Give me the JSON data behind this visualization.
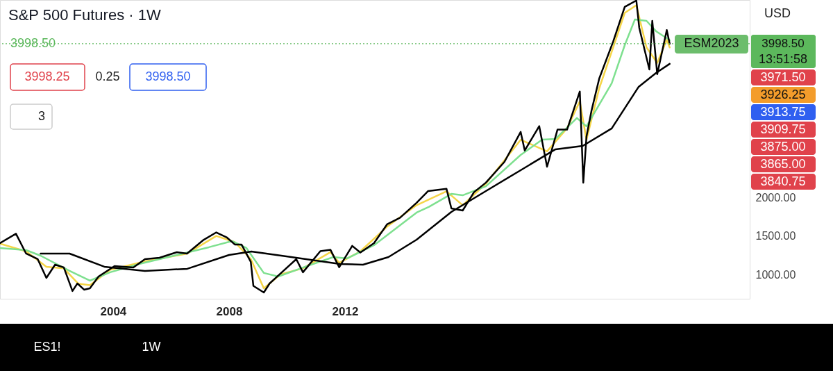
{
  "chart_data": {
    "type": "line",
    "title": "S&P 500 Futures · 1W",
    "xlim": [
      2000.1,
      2025.96
    ],
    "ylim": [
      684,
      4567
    ],
    "xticks": [
      2004,
      2008,
      2012
    ],
    "yticks": [
      {
        "value": 1000,
        "label": "1000.00"
      },
      {
        "value": 1500,
        "label": "1500.00"
      },
      {
        "value": 2000,
        "label": "2000.00"
      }
    ],
    "grid": false,
    "series": [
      {
        "color": "#f5d547",
        "x": [
          2000.1,
          2001.0,
          2001.7,
          2002.3,
          2002.8,
          2003.2,
          2003.9,
          2005.1,
          2006.55,
          2007.56,
          2008.2,
          2008.75,
          2009.2,
          2009.77,
          2010.55,
          2011.5,
          2011.8,
          2012.53,
          2013.45,
          2014.47,
          2015.5,
          2016.06,
          2016.86,
          2018.06,
          2018.97,
          2019.66,
          2020.1,
          2020.33,
          2020.77,
          2021.25,
          2021.65,
          2022.05,
          2022.4,
          2022.77,
          2023.1,
          2023.2
        ],
        "values": [
          1400,
          1300,
          1100,
          1080,
          880,
          860,
          1060,
          1170,
          1270,
          1500,
          1420,
          1200,
          820,
          1000,
          1080,
          1290,
          1150,
          1300,
          1620,
          1900,
          2080,
          1900,
          2180,
          2750,
          2600,
          2900,
          3250,
          2750,
          3420,
          3950,
          4400,
          4500,
          3950,
          3750,
          4050,
          3950
        ]
      },
      {
        "color": "#7ee08f",
        "x": [
          2000.1,
          2001.0,
          2001.5,
          2002.5,
          2003.2,
          2003.9,
          2004.9,
          2006.1,
          2007.3,
          2008.1,
          2008.6,
          2009.2,
          2009.7,
          2010.63,
          2011.6,
          2012.07,
          2013.0,
          2014.47,
          2014.9,
          2015.67,
          2016.06,
          2016.86,
          2018.06,
          2018.8,
          2019.26,
          2020.0,
          2020.33,
          2021.2,
          2021.65,
          2022.0,
          2022.4,
          2022.73,
          2023.1,
          2023.2
        ],
        "values": [
          1344,
          1316,
          1244,
          1046,
          919,
          1028,
          1136,
          1244,
          1353,
          1434,
          1344,
          1019,
          973,
          1100,
          1226,
          1208,
          1380,
          1804,
          1880,
          2047,
          2029,
          2146,
          2553,
          2752,
          2762,
          3033,
          2925,
          3484,
          3980,
          4314,
          4296,
          4161,
          4071,
          4044
        ]
      },
      {
        "color": "#000000",
        "x": [
          2000.1,
          2000.65,
          2001.0,
          2001.4,
          2001.7,
          2002.0,
          2002.3,
          2002.6,
          2002.77,
          2003.0,
          2003.2,
          2003.5,
          2004.05,
          2004.7,
          2005.1,
          2005.6,
          2006.2,
          2006.55,
          2007.1,
          2007.56,
          2007.93,
          2008.2,
          2008.43,
          2008.75,
          2008.84,
          2009.2,
          2009.4,
          2009.77,
          2010.32,
          2010.55,
          2011.15,
          2011.5,
          2011.8,
          2012.25,
          2012.53,
          2013.0,
          2013.45,
          2013.9,
          2014.47,
          2014.87,
          2015.5,
          2015.67,
          2016.06,
          2016.45,
          2016.86,
          2017.5,
          2018.06,
          2018.2,
          2018.7,
          2018.97,
          2019.33,
          2019.66,
          2020.1,
          2020.22,
          2020.33,
          2020.5,
          2020.77,
          2021.25,
          2021.65,
          2022.05,
          2022.15,
          2022.4,
          2022.5,
          2022.6,
          2022.77,
          2023.1,
          2023.2
        ],
        "values": [
          1407,
          1529,
          1271,
          1199,
          955,
          1127,
          1091,
          784,
          883,
          802,
          820,
          973,
          1109,
          1091,
          1199,
          1217,
          1289,
          1271,
          1443,
          1546,
          1479,
          1389,
          1389,
          1163,
          851,
          765,
          883,
          1010,
          1199,
          1028,
          1303,
          1320,
          1094,
          1371,
          1284,
          1406,
          1651,
          1737,
          1931,
          2084,
          2114,
          1858,
          1831,
          2069,
          2193,
          2463,
          2852,
          2611,
          2927,
          2400,
          2882,
          2882,
          3378,
          2193,
          2792,
          3123,
          3547,
          4026,
          4477,
          4560,
          4206,
          3818,
          3664,
          4296,
          3604,
          4176,
          3998.5
        ]
      },
      {
        "color": "#000000",
        "x": [
          2001.5,
          2002.5,
          2003.7,
          2005.1,
          2006.56,
          2008.0,
          2008.77,
          2010.15,
          2011.83,
          2012.62,
          2013.5,
          2014.47,
          2015.67,
          2016.86,
          2018.06,
          2019.26,
          2020.2,
          2021.2,
          2022.13,
          2022.73,
          2023.2
        ],
        "values": [
          1271,
          1271,
          1100,
          1046,
          1073,
          1253,
          1298,
          1226,
          1136,
          1127,
          1226,
          1452,
          1813,
          2084,
          2355,
          2626,
          2671,
          2897,
          3439,
          3619,
          3737
        ]
      }
    ],
    "ref_lines": [
      {
        "axis": "y",
        "value": 3998.5,
        "label": "3998.50",
        "color": "#5cb85c",
        "line_style": "dotted"
      }
    ],
    "annotations": [
      "3998.25",
      "0.25",
      "3998.50",
      "3",
      "USD",
      "ESM2023",
      "13:51:58",
      "ES1!",
      "1W",
      "3971.50",
      "3926.25",
      "3913.75",
      "3909.75",
      "3875.00",
      "3865.00",
      "3840.75"
    ]
  }
}
